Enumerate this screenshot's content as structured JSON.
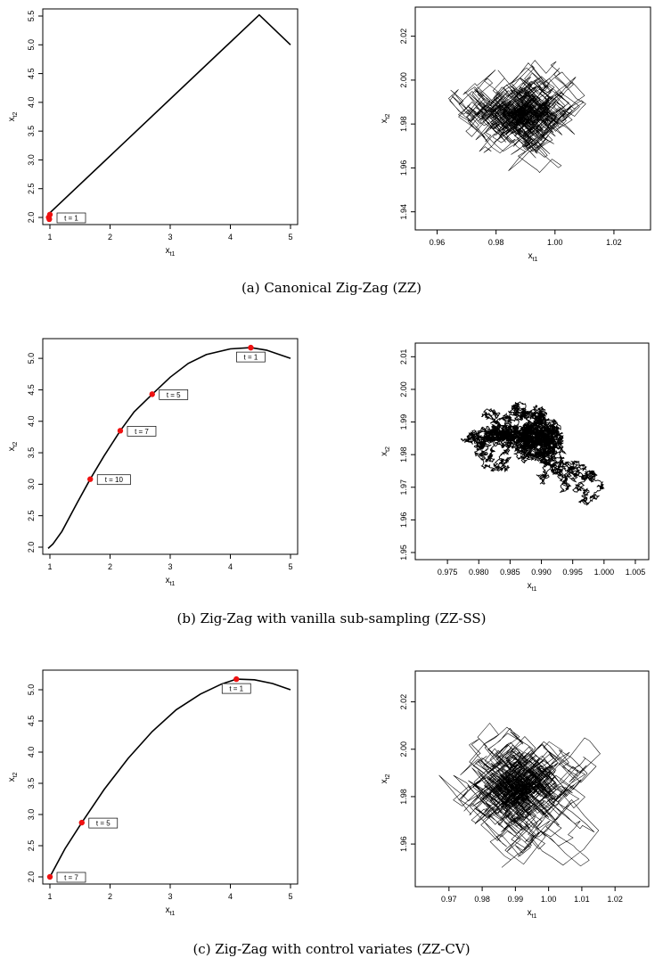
{
  "captions": [
    "(a) Canonical Zig-Zag (ZZ)",
    "(b) Zig-Zag with vanilla sub-sampling (ZZ-SS)",
    "(c) Zig-Zag with control variates (ZZ-CV)"
  ],
  "chart_data": [
    {
      "type": "line",
      "panel": "a-left",
      "xlabel": "x",
      "xlabel_sub": "t1",
      "ylabel": "x",
      "ylabel_sub": "t2",
      "xlim": [
        1,
        5
      ],
      "ylim": [
        2,
        5.5
      ],
      "xticks": [
        1,
        2,
        3,
        4,
        5
      ],
      "yticks": [
        "2.0",
        "2.5",
        "3.0",
        "3.5",
        "4.0",
        "4.5",
        "5.0",
        "5.5"
      ],
      "path": [
        [
          1.0,
          2.08
        ],
        [
          4.48,
          5.52
        ],
        [
          5.0,
          5.0
        ]
      ],
      "markers": [
        [
          0.98,
          2.0
        ],
        [
          1.0,
          2.05
        ],
        [
          0.99,
          1.97
        ]
      ],
      "annotations": [
        {
          "x": 1.0,
          "y": 2.0,
          "text": "t = 1"
        }
      ]
    },
    {
      "type": "line",
      "panel": "a-right",
      "xlabel": "x",
      "xlabel_sub": "t1",
      "ylabel": "x",
      "ylabel_sub": "t2",
      "xlim": [
        0.955,
        1.03
      ],
      "ylim": [
        1.935,
        2.03
      ],
      "xticks": [
        "0.96",
        "0.98",
        "1.00",
        "1.02"
      ],
      "yticks": [
        "1.94",
        "1.96",
        "1.98",
        "2.00",
        "2.02"
      ],
      "walk": {
        "style": "zigzag",
        "center": [
          0.99,
          1.985
        ],
        "spread": [
          0.016,
          0.02
        ]
      }
    },
    {
      "type": "line",
      "panel": "b-left",
      "xlabel": "x",
      "xlabel_sub": "t1",
      "ylabel": "x",
      "ylabel_sub": "t2",
      "xlim": [
        1,
        5
      ],
      "ylim": [
        2,
        5.2
      ],
      "xticks": [
        1,
        2,
        3,
        4,
        5
      ],
      "yticks": [
        "2.0",
        "2.5",
        "3.0",
        "3.5",
        "4.0",
        "4.5",
        "5.0"
      ],
      "path": [
        [
          0.97,
          1.98
        ],
        [
          1.05,
          2.05
        ],
        [
          1.2,
          2.25
        ],
        [
          1.45,
          2.7
        ],
        [
          1.67,
          3.08
        ],
        [
          1.9,
          3.45
        ],
        [
          2.17,
          3.85
        ],
        [
          2.4,
          4.15
        ],
        [
          2.7,
          4.43
        ],
        [
          3.0,
          4.7
        ],
        [
          3.3,
          4.92
        ],
        [
          3.6,
          5.06
        ],
        [
          4.0,
          5.15
        ],
        [
          4.34,
          5.17
        ],
        [
          4.6,
          5.13
        ],
        [
          5.0,
          5.0
        ]
      ],
      "markers": [
        [
          4.34,
          5.17
        ],
        [
          2.7,
          4.43
        ],
        [
          2.17,
          3.85
        ],
        [
          1.67,
          3.08
        ]
      ],
      "annotations": [
        {
          "x": 4.34,
          "y": 5.17,
          "text": "t = 1"
        },
        {
          "x": 2.7,
          "y": 4.43,
          "text": "t = 5"
        },
        {
          "x": 2.17,
          "y": 3.85,
          "text": "t = 7"
        },
        {
          "x": 1.67,
          "y": 3.08,
          "text": "t = 10"
        }
      ]
    },
    {
      "type": "line",
      "panel": "b-right",
      "xlabel": "x",
      "xlabel_sub": "t1",
      "ylabel": "x",
      "ylabel_sub": "t2",
      "xlim": [
        0.971,
        1.006
      ],
      "ylim": [
        1.95,
        2.012
      ],
      "xticks": [
        "0.975",
        "0.980",
        "0.985",
        "0.990",
        "0.995",
        "1.000",
        "1.005"
      ],
      "yticks": [
        "1.95",
        "1.96",
        "1.97",
        "1.98",
        "1.99",
        "2.00",
        "2.01"
      ],
      "walk": {
        "style": "brownian",
        "center": [
          0.987,
          1.984
        ],
        "spread": [
          0.011,
          0.018
        ]
      }
    },
    {
      "type": "line",
      "panel": "c-left",
      "xlabel": "x",
      "xlabel_sub": "t1",
      "ylabel": "x",
      "ylabel_sub": "t2",
      "xlim": [
        1,
        5
      ],
      "ylim": [
        2,
        5.2
      ],
      "xticks": [
        1,
        2,
        3,
        4,
        5
      ],
      "yticks": [
        "2.0",
        "2.5",
        "3.0",
        "3.5",
        "4.0",
        "4.5",
        "5.0"
      ],
      "path": [
        [
          1.0,
          2.0
        ],
        [
          1.25,
          2.45
        ],
        [
          1.53,
          2.87
        ],
        [
          1.9,
          3.4
        ],
        [
          2.3,
          3.9
        ],
        [
          2.7,
          4.33
        ],
        [
          3.1,
          4.68
        ],
        [
          3.5,
          4.93
        ],
        [
          3.85,
          5.09
        ],
        [
          4.1,
          5.17
        ],
        [
          4.4,
          5.16
        ],
        [
          4.7,
          5.1
        ],
        [
          5.0,
          5.0
        ]
      ],
      "markers": [
        [
          4.1,
          5.17
        ],
        [
          1.53,
          2.87
        ],
        [
          1.0,
          2.0
        ]
      ],
      "annotations": [
        {
          "x": 4.1,
          "y": 5.17,
          "text": "t = 1"
        },
        {
          "x": 1.53,
          "y": 2.87,
          "text": "t = 5"
        },
        {
          "x": 1.0,
          "y": 2.0,
          "text": "t = 7"
        }
      ]
    },
    {
      "type": "line",
      "panel": "c-right",
      "xlabel": "x",
      "xlabel_sub": "t1",
      "ylabel": "x",
      "ylabel_sub": "t2",
      "xlim": [
        0.962,
        1.028
      ],
      "ylim": [
        1.945,
        2.03
      ],
      "xticks": [
        "0.97",
        "0.98",
        "0.99",
        "1.00",
        "1.01",
        "1.02"
      ],
      "yticks": [
        "1.96",
        "1.98",
        "2.00",
        "2.02"
      ],
      "walk": {
        "style": "zigzag",
        "center": [
          0.991,
          1.984
        ],
        "spread": [
          0.017,
          0.022
        ]
      }
    }
  ]
}
